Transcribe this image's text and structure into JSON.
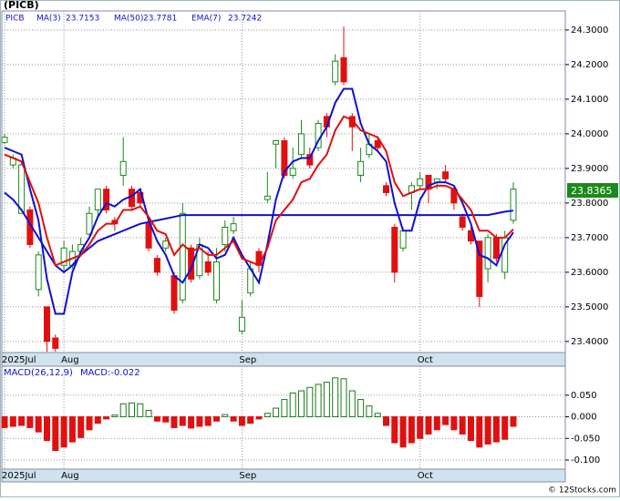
{
  "chart_data": [
    {
      "type": "candlestick",
      "title": "(PICB)",
      "symbol": "PICB",
      "categories": [
        "2025Jul",
        null,
        null,
        null,
        null,
        null,
        null,
        "Aug",
        null,
        null,
        null,
        null,
        null,
        null,
        null,
        null,
        null,
        null,
        null,
        null,
        null,
        null,
        null,
        null,
        null,
        null,
        null,
        null,
        "Sep",
        null,
        null,
        null,
        null,
        null,
        null,
        null,
        null,
        null,
        null,
        null,
        null,
        null,
        null,
        null,
        null,
        null,
        null,
        null,
        null,
        "Oct",
        null,
        null,
        null,
        null,
        null,
        null,
        null,
        null,
        null,
        null,
        null
      ],
      "open": [
        23.975,
        23.91,
        23.77,
        23.78,
        23.55,
        23.5,
        23.41,
        23.62,
        23.62,
        23.66,
        23.71,
        23.78,
        23.84,
        23.75,
        23.88,
        23.84,
        23.83,
        23.74,
        23.64,
        23.67,
        23.59,
        23.52,
        23.67,
        23.59,
        23.63,
        23.52,
        23.68,
        23.72,
        23.43,
        23.54,
        23.66,
        23.81,
        23.97,
        23.98,
        23.88,
        23.94,
        23.94,
        23.96,
        24.05,
        24.15,
        24.22,
        24.05,
        23.88,
        23.94,
        23.98,
        23.85,
        23.73,
        23.67,
        23.83,
        23.85,
        23.88,
        23.86,
        23.89,
        23.84,
        23.76,
        23.72,
        23.69,
        23.61,
        23.7,
        23.6,
        23.75
      ],
      "high": [
        24.0,
        23.94,
        23.92,
        23.79,
        23.66,
        23.5,
        23.42,
        23.69,
        23.68,
        23.7,
        23.79,
        23.84,
        23.85,
        23.76,
        23.99,
        23.85,
        23.84,
        23.75,
        23.65,
        23.7,
        23.6,
        23.8,
        23.68,
        23.7,
        23.66,
        23.67,
        23.75,
        23.76,
        23.52,
        23.63,
        23.67,
        23.89,
        23.98,
        23.99,
        23.96,
        24.04,
        23.96,
        24.04,
        24.06,
        24.23,
        24.31,
        24.06,
        23.96,
        24.0,
        23.99,
        23.86,
        23.74,
        23.73,
        23.86,
        23.89,
        23.88,
        23.87,
        23.91,
        23.85,
        23.77,
        23.73,
        23.69,
        23.71,
        23.71,
        23.72,
        23.86
      ],
      "low": [
        23.97,
        23.9,
        23.77,
        23.67,
        23.53,
        23.37,
        23.37,
        23.6,
        23.61,
        23.65,
        23.7,
        23.76,
        23.77,
        23.72,
        23.85,
        23.78,
        23.79,
        23.66,
        23.59,
        23.66,
        23.48,
        23.51,
        23.57,
        23.58,
        23.59,
        23.51,
        23.66,
        23.71,
        23.42,
        23.53,
        23.6,
        23.8,
        23.9,
        23.87,
        23.87,
        23.93,
        23.9,
        23.95,
        23.99,
        24.14,
        24.14,
        23.95,
        23.86,
        23.93,
        23.95,
        23.82,
        23.57,
        23.66,
        23.78,
        23.84,
        23.8,
        23.84,
        23.86,
        23.78,
        23.72,
        23.68,
        23.5,
        23.57,
        23.63,
        23.58,
        23.74
      ],
      "close": [
        23.99,
        23.93,
        23.91,
        23.68,
        23.65,
        23.4,
        23.38,
        23.67,
        23.66,
        23.68,
        23.77,
        23.84,
        23.78,
        23.74,
        23.92,
        23.79,
        23.8,
        23.67,
        23.6,
        23.69,
        23.49,
        23.77,
        23.58,
        23.68,
        23.6,
        23.63,
        23.73,
        23.74,
        23.47,
        23.61,
        23.62,
        23.82,
        23.98,
        23.88,
        23.9,
        24.0,
        23.91,
        24.03,
        24.02,
        24.21,
        24.15,
        24.02,
        23.92,
        23.97,
        23.96,
        23.83,
        23.6,
        23.72,
        23.85,
        23.87,
        23.84,
        23.87,
        23.87,
        23.8,
        23.73,
        23.69,
        23.53,
        23.7,
        23.64,
        23.7,
        23.84
      ],
      "up_color": "#1a8a1a",
      "down_color": "#e01010",
      "series": [
        {
          "name": "MA(3)",
          "color": "#1010d0",
          "last": 23.7153,
          "values": [
            23.96,
            23.95,
            23.94,
            23.84,
            23.75,
            23.58,
            23.48,
            23.48,
            23.6,
            23.66,
            23.7,
            23.76,
            23.8,
            23.79,
            23.81,
            23.82,
            23.84,
            23.75,
            23.69,
            23.65,
            23.59,
            23.57,
            23.61,
            23.68,
            23.67,
            23.64,
            23.65,
            23.7,
            23.65,
            23.61,
            23.57,
            23.68,
            23.81,
            23.89,
            23.92,
            23.93,
            23.93,
            23.98,
            24.02,
            24.09,
            24.13,
            24.13,
            24.03,
            23.97,
            23.95,
            23.92,
            23.8,
            23.72,
            23.72,
            23.81,
            23.85,
            23.86,
            23.86,
            23.85,
            23.8,
            23.74,
            23.65,
            23.64,
            23.62,
            23.68,
            23.7153
          ]
        },
        {
          "name": "MA(50)",
          "color": "#1010d0",
          "last": 23.7781,
          "values": [
            23.83,
            23.81,
            23.78,
            23.74,
            23.7,
            23.66,
            23.62,
            23.6,
            23.62,
            23.65,
            23.67,
            23.69,
            23.7,
            23.71,
            23.72,
            23.73,
            23.74,
            23.745,
            23.75,
            23.755,
            23.76,
            23.765,
            23.765,
            23.765,
            23.765,
            23.765,
            23.765,
            23.765,
            23.765,
            23.765,
            23.765,
            23.765,
            23.765,
            23.765,
            23.765,
            23.765,
            23.765,
            23.765,
            23.765,
            23.765,
            23.765,
            23.765,
            23.765,
            23.765,
            23.765,
            23.765,
            23.765,
            23.765,
            23.765,
            23.765,
            23.765,
            23.765,
            23.765,
            23.765,
            23.765,
            23.765,
            23.765,
            23.765,
            23.77,
            23.775,
            23.7781
          ]
        },
        {
          "name": "EMA(7)",
          "color": "#e01010",
          "last": 23.7242,
          "values": [
            23.94,
            23.93,
            23.92,
            23.86,
            23.8,
            23.7,
            23.62,
            23.63,
            23.64,
            23.65,
            23.68,
            23.72,
            23.74,
            23.74,
            23.78,
            23.78,
            23.79,
            23.76,
            23.72,
            23.71,
            23.65,
            23.68,
            23.66,
            23.67,
            23.65,
            23.65,
            23.67,
            23.69,
            23.64,
            23.63,
            23.62,
            23.67,
            23.75,
            23.78,
            23.81,
            23.86,
            23.87,
            23.91,
            23.94,
            24.01,
            24.05,
            24.04,
            24.01,
            24.0,
            23.99,
            23.95,
            23.86,
            23.82,
            23.83,
            23.84,
            23.84,
            23.85,
            23.85,
            23.84,
            23.81,
            23.78,
            23.72,
            23.72,
            23.7,
            23.7,
            23.7242
          ]
        }
      ],
      "last_price": 23.8365,
      "ylim": [
        23.368,
        24.355
      ],
      "yticks": [
        {
          "value": 24.3,
          "label": "24.3000"
        },
        {
          "value": 24.2,
          "label": "24.2000"
        },
        {
          "value": 24.1,
          "label": "24.1000"
        },
        {
          "value": 24.0,
          "label": "24.0000"
        },
        {
          "value": 23.9,
          "label": "23.9000"
        },
        {
          "value": 23.8,
          "label": "23.8000"
        },
        {
          "value": 23.7,
          "label": "23.7000"
        },
        {
          "value": 23.6,
          "label": "23.6000"
        },
        {
          "value": 23.5,
          "label": "23.5000"
        },
        {
          "value": 23.4,
          "label": "23.4000"
        }
      ],
      "grid": true
    },
    {
      "type": "bar",
      "title": "MACD(26,12,9)",
      "current": "MACD:-0.022",
      "categories": [
        "2025Jul",
        null,
        null,
        null,
        null,
        null,
        null,
        "Aug",
        null,
        null,
        null,
        null,
        null,
        null,
        null,
        null,
        null,
        null,
        null,
        null,
        null,
        null,
        null,
        null,
        null,
        null,
        null,
        null,
        "Sep",
        null,
        null,
        null,
        null,
        null,
        null,
        null,
        null,
        null,
        null,
        null,
        null,
        null,
        null,
        null,
        null,
        null,
        null,
        null,
        null,
        "Oct",
        null,
        null,
        null,
        null,
        null,
        null,
        null,
        null,
        null,
        null,
        null
      ],
      "values": [
        -0.025,
        -0.022,
        -0.02,
        -0.025,
        -0.035,
        -0.055,
        -0.078,
        -0.07,
        -0.058,
        -0.048,
        -0.03,
        -0.015,
        -0.005,
        0.004,
        0.03,
        0.032,
        0.03,
        0.015,
        -0.01,
        -0.012,
        -0.025,
        -0.02,
        -0.026,
        -0.022,
        -0.02,
        -0.01,
        0.005,
        -0.01,
        -0.02,
        -0.015,
        -0.005,
        0.008,
        0.02,
        0.04,
        0.055,
        0.06,
        0.068,
        0.075,
        0.08,
        0.09,
        0.088,
        0.06,
        0.04,
        0.025,
        0.008,
        -0.02,
        -0.06,
        -0.07,
        -0.06,
        -0.05,
        -0.04,
        -0.03,
        -0.018,
        -0.03,
        -0.04,
        -0.055,
        -0.07,
        -0.063,
        -0.058,
        -0.052,
        -0.022
      ],
      "up_color": "#1a7a1a",
      "down_color": "#e01010",
      "ylim": [
        -0.121,
        0.117
      ],
      "yticks": [
        {
          "value": 0.05,
          "label": "0.050"
        },
        {
          "value": 0,
          "label": "0.000"
        },
        {
          "value": -0.05,
          "label": "-0.050"
        },
        {
          "value": -0.1,
          "label": "-0.100"
        }
      ],
      "grid": true
    }
  ],
  "footer": "© 12Stocks.com"
}
